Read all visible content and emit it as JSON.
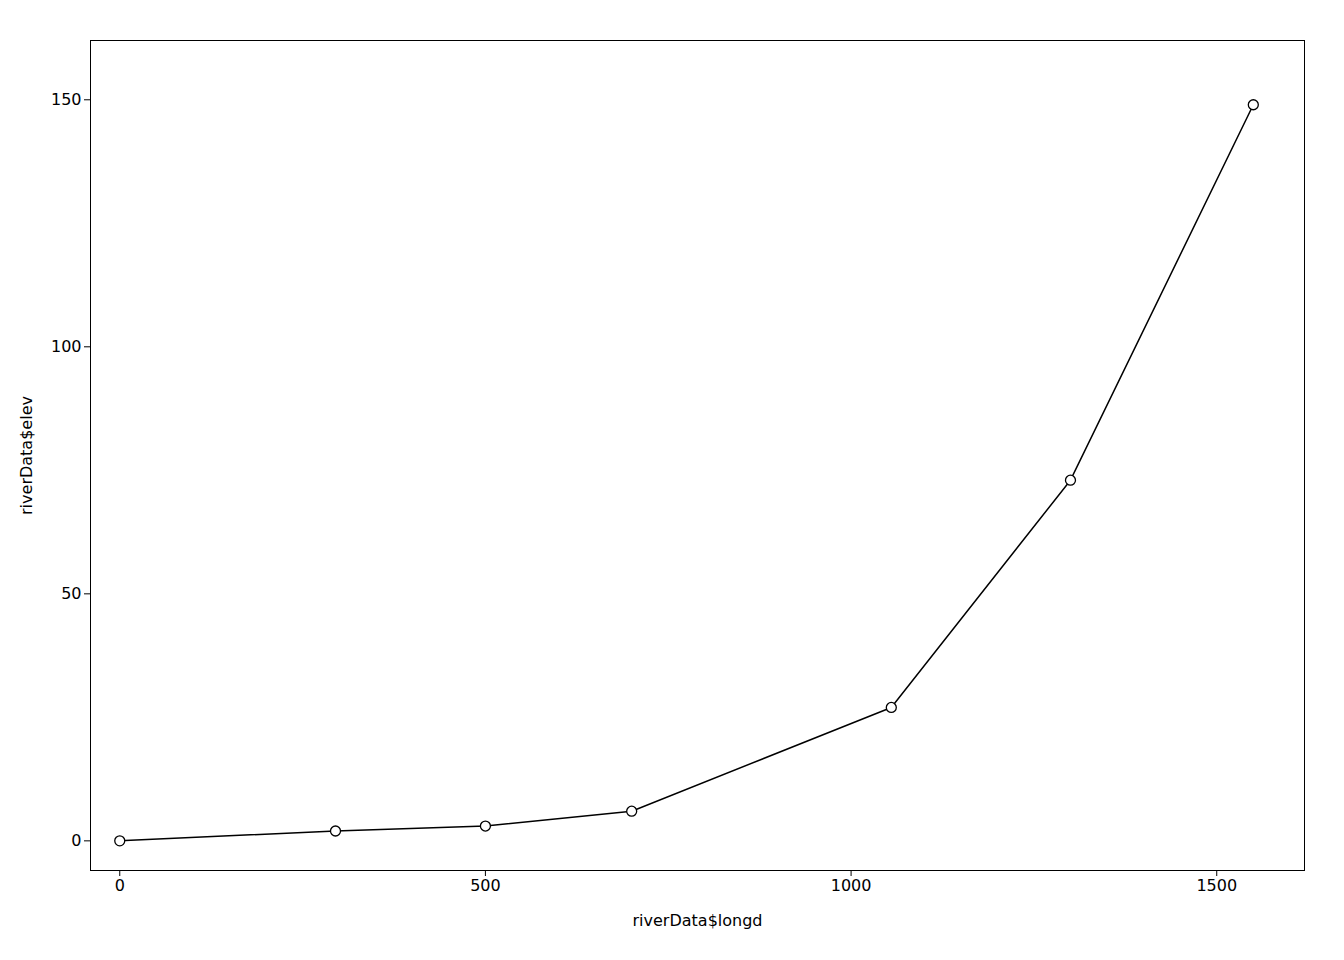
{
  "chart_data": {
    "type": "line",
    "x": [
      0,
      295,
      500,
      700,
      1055,
      1300,
      1550
    ],
    "values": [
      0,
      2,
      3,
      6,
      27,
      73,
      149
    ],
    "xlabel": "riverData$longd",
    "ylabel": "riverData$elev",
    "xlim": [
      -40,
      1620
    ],
    "ylim": [
      -6,
      162
    ],
    "xticks": [
      0,
      500,
      1000,
      1500
    ],
    "yticks": [
      0,
      50,
      100,
      150
    ],
    "color": "#000000",
    "marker": "circle",
    "grid": false
  }
}
